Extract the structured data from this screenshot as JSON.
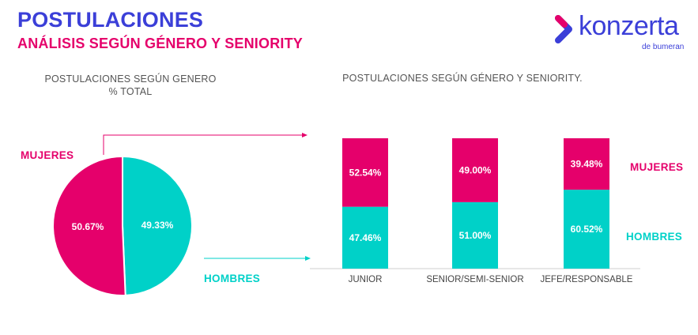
{
  "header": {
    "title": "POSTULACIONES",
    "subtitle": "ANÁLISIS SEGÚN GÉNERO Y SENIORITY"
  },
  "logo": {
    "name": "konzerta",
    "tagline": "de bumeran"
  },
  "colors": {
    "mujeres": "#e5006b",
    "hombres": "#00d1c8",
    "title": "#3b3fd8"
  },
  "chart_data": [
    {
      "type": "pie",
      "title": "POSTULACIONES SEGÚN GENERO",
      "subtitle": "% TOTAL",
      "slices": [
        {
          "name": "MUJERES",
          "value": 50.67,
          "label": "50.67%"
        },
        {
          "name": "HOMBRES",
          "value": 49.33,
          "label": "49.33%"
        }
      ]
    },
    {
      "type": "bar",
      "stacked": true,
      "title": "POSTULACIONES SEGÚN GÉNERO Y SENIORITY.",
      "categories": [
        "JUNIOR",
        "SENIOR/SEMI-SENIOR",
        "JEFE/RESPONSABLE"
      ],
      "series": [
        {
          "name": "HOMBRES",
          "values": [
            47.46,
            51.0,
            60.52
          ],
          "labels": [
            "47.46%",
            "51.00%",
            "60.52%"
          ]
        },
        {
          "name": "MUJERES",
          "values": [
            52.54,
            49.0,
            39.48
          ],
          "labels": [
            "52.54%",
            "49.00%",
            "39.48%"
          ]
        }
      ],
      "ylim": [
        0,
        100
      ]
    }
  ]
}
